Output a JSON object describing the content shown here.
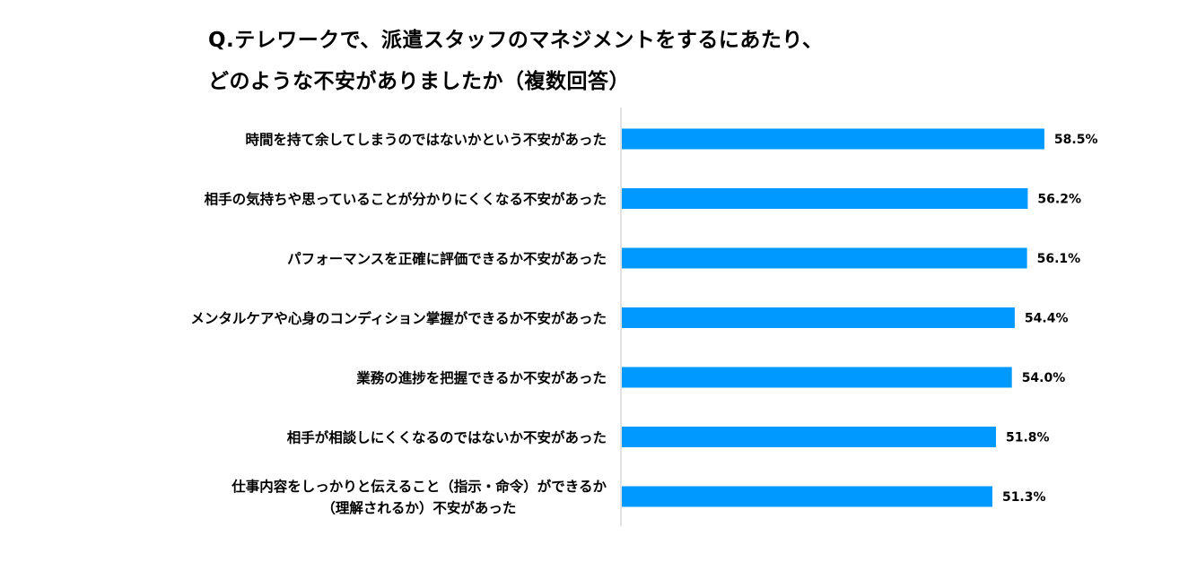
{
  "chart_data": {
    "type": "bar",
    "orientation": "horizontal",
    "title_lines": [
      "Q.テレワークで、派遣スタッフのマネジメントをするにあたり、",
      "どのような不安がありましたか（複数回答）"
    ],
    "categories": [
      [
        "時間を持て余してしまうのではないかという不安があった"
      ],
      [
        "相手の気持ちや思っていることが分かりにくくなる不安があった"
      ],
      [
        "パフォーマンスを正確に評価できるか不安があった"
      ],
      [
        "メンタルケアや心身のコンディション掌握ができるか不安があった"
      ],
      [
        "業務の進捗を把握できるか不安があった"
      ],
      [
        "相手が相談しにくくなるのではないか不安があった"
      ],
      [
        "仕事内容をしっかりと伝えること（指示・命令）ができるか",
        "（理解されるか）不安があった"
      ]
    ],
    "values": [
      58.5,
      56.2,
      56.1,
      54.4,
      54.0,
      51.8,
      51.3
    ],
    "value_labels": [
      "58.5%",
      "56.2%",
      "56.1%",
      "54.4%",
      "54.0%",
      "51.8%",
      "51.3%"
    ],
    "unit": "%",
    "xlim": [
      0,
      100
    ],
    "bar_color": "#0099FF",
    "axis_color": "#D9D9D9",
    "grid": false,
    "legend": "none"
  }
}
